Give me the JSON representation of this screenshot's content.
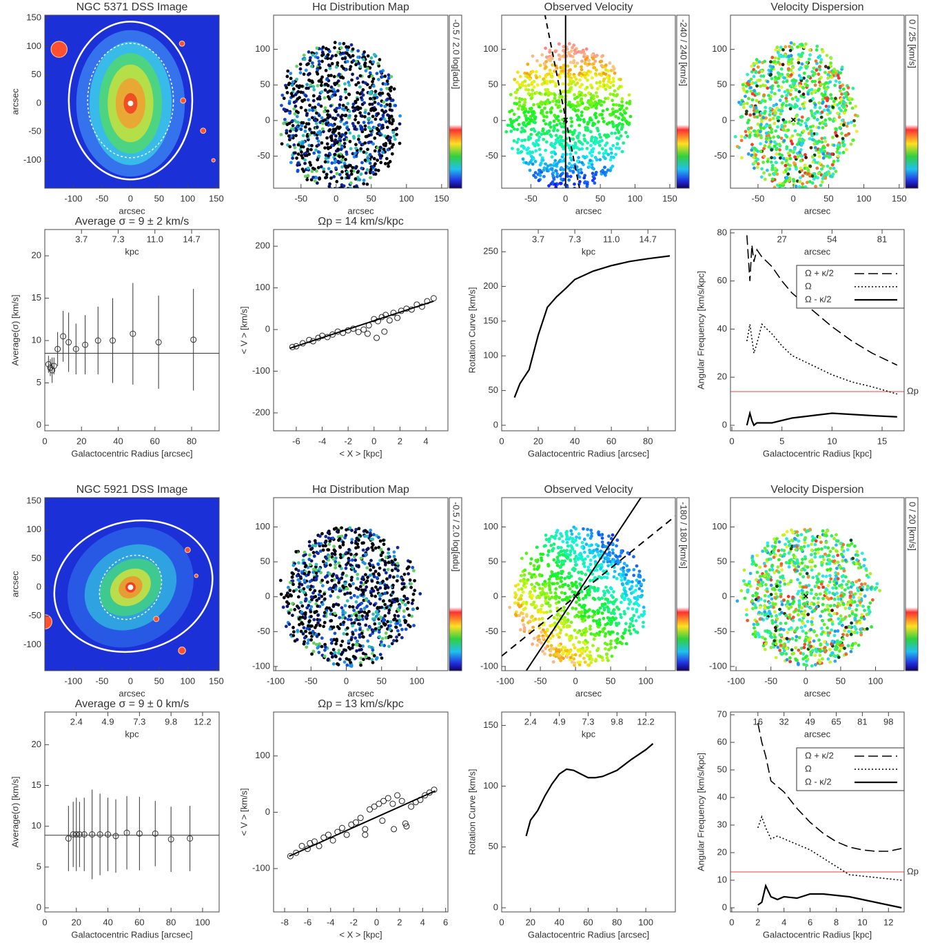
{
  "chart_data": [
    {
      "type": "image",
      "title": "NGC 5371 DSS Image",
      "xlabel": "arcsec",
      "ylabel": "arcsec",
      "xlim": [
        -150,
        155
      ],
      "ylim": [
        -149,
        155
      ],
      "xticks": [
        -100,
        -50,
        0,
        50,
        100,
        150
      ],
      "yticks": [
        -100,
        -50,
        0,
        50,
        100,
        150
      ]
    },
    {
      "type": "map",
      "title": "Hα Distribution Map",
      "xlabel": "arcsec",
      "xlim": [
        -89,
        159
      ],
      "ylim": [
        -95,
        148
      ],
      "xticks": [
        -50,
        0,
        50,
        100,
        150
      ],
      "yticks": [
        -50,
        0,
        50,
        100
      ],
      "colorbar_label": "-0.5 / 2.0 log[adu]"
    },
    {
      "type": "map",
      "title": "Observed Velocity",
      "xlabel": "arcsec",
      "xlim": [
        -92,
        158
      ],
      "ylim": [
        -95,
        148
      ],
      "xticks": [
        -50,
        0,
        50,
        100,
        150
      ],
      "yticks": [
        -50,
        0,
        50,
        100
      ],
      "colorbar_label": "-240 / 240 [km/s]"
    },
    {
      "type": "map",
      "title": "Velocity Dispersion",
      "xlabel": "arcsec",
      "xlim": [
        -89,
        157
      ],
      "ylim": [
        -95,
        148
      ],
      "xticks": [
        -50,
        0,
        50,
        100,
        150
      ],
      "yticks": [
        -50,
        0,
        50,
        100
      ],
      "colorbar_label": "0 / 25 [km/s]"
    },
    {
      "type": "errorbar",
      "title": "Average σ = 9 ± 2 km/s",
      "xlabel": "Galactocentric Radius [arcsec]",
      "ylabel": "Average(σ) [km/s]",
      "xlim": [
        0,
        95
      ],
      "ylim": [
        -0.65,
        23.1
      ],
      "xticks": [
        0,
        20,
        40,
        60,
        80
      ],
      "yticks": [
        0,
        5,
        10,
        15,
        20
      ],
      "top_xlabel": "kpc",
      "top_xticks": [
        {
          "value": 20,
          "label": "3.7"
        },
        {
          "value": 40,
          "label": "7.3"
        },
        {
          "value": 60,
          "label": "11.0"
        },
        {
          "value": 80,
          "label": "14.7"
        }
      ],
      "x": [
        2,
        3,
        4,
        5,
        7,
        10,
        13,
        17,
        22,
        29,
        37,
        48,
        62,
        81
      ],
      "values": [
        7.2,
        6.8,
        6.5,
        7,
        9,
        10.5,
        9.8,
        9,
        9.5,
        10,
        10,
        10.8,
        9.8,
        10.1
      ],
      "errors": [
        1,
        1,
        1.5,
        1,
        2,
        3,
        3.5,
        3,
        3.5,
        4,
        5,
        6,
        5.5,
        6
      ],
      "mean": 8.5
    },
    {
      "type": "scatter",
      "title": "Ωp = 14 km/s/kpc",
      "xlabel": "< X > [kpc]",
      "ylabel": "< V > [km/s]",
      "xlim": [
        -7.75,
        5.7
      ],
      "ylim": [
        -243,
        240
      ],
      "xticks": [
        -6,
        -4,
        -2,
        0,
        2,
        4
      ],
      "yticks": [
        -200,
        -100,
        0,
        100,
        200
      ],
      "x": [
        -6.3,
        -6,
        -5.5,
        -5,
        -4.7,
        -4.3,
        -4,
        -3.6,
        -3.2,
        -2.8,
        -2.4,
        -2,
        -1.6,
        -1.2,
        -0.8,
        -0.4,
        0,
        0.3,
        0.6,
        0.9,
        1.2,
        1.5,
        1.8,
        2.1,
        2.5,
        2.9,
        3.3,
        3.7,
        4.1,
        4.6,
        -0.5,
        0.2,
        0.8
      ],
      "y": [
        -42,
        -40,
        -33,
        -25,
        -28,
        -20,
        -15,
        -18,
        -12,
        -5,
        -8,
        -2,
        2,
        -6,
        0,
        10,
        25,
        20,
        30,
        35,
        22,
        40,
        28,
        45,
        50,
        48,
        60,
        55,
        68,
        75,
        -10,
        -20,
        -5
      ],
      "fit": {
        "x": [
          -6.5,
          4.6
        ],
        "y": [
          -45,
          68
        ]
      }
    },
    {
      "type": "line",
      "xlabel": "Galactocentric Radius [arcsec]",
      "ylabel": "Rotation Curve [km/s]",
      "xlim": [
        0,
        95
      ],
      "ylim": [
        -8,
        282
      ],
      "xticks": [
        0,
        20,
        40,
        60,
        80
      ],
      "yticks": [
        0,
        50,
        100,
        150,
        200,
        250
      ],
      "top_xlabel": "kpc",
      "top_xticks": [
        {
          "value": 20,
          "label": "3.7"
        },
        {
          "value": 40,
          "label": "7.3"
        },
        {
          "value": 60,
          "label": "11.0"
        },
        {
          "value": 80,
          "label": "14.7"
        }
      ],
      "x": [
        7,
        10,
        15,
        20,
        25,
        30,
        35,
        40,
        50,
        60,
        70,
        80,
        92
      ],
      "values": [
        40,
        60,
        80,
        130,
        170,
        185,
        197,
        210,
        222,
        230,
        236,
        240,
        244
      ]
    },
    {
      "type": "multiline",
      "xlabel": "Galactocentric Radius [kpc]",
      "ylabel": "Angular Frequency [km/s/kpc]",
      "xlim": [
        -0.14,
        17.2
      ],
      "ylim": [
        -2.3,
        81.4
      ],
      "xticks": [
        0,
        5,
        10,
        15
      ],
      "yticks": [
        0,
        20,
        40,
        60,
        80
      ],
      "top_xlabel": "arcsec",
      "top_xticks": [
        {
          "value": 5,
          "label": "27"
        },
        {
          "value": 10,
          "label": "54"
        },
        {
          "value": 15,
          "label": "81"
        }
      ],
      "legend": "upper right",
      "x": [
        1.5,
        1.8,
        2,
        2.2,
        2.5,
        3,
        4,
        5,
        6,
        8,
        10,
        12,
        14,
        16.5
      ],
      "series": [
        {
          "name": "Ω + κ/2",
          "dash": "long-dash",
          "values": [
            79,
            60,
            75,
            68,
            73,
            70,
            66,
            60,
            55,
            48,
            41,
            35,
            30,
            25
          ]
        },
        {
          "name": "Ω",
          "dash": "dotted",
          "values": [
            35,
            42,
            36,
            30,
            34,
            42,
            38,
            33,
            29,
            25,
            21,
            18,
            16,
            13
          ]
        },
        {
          "name": "Ω - κ/2",
          "dash": "solid",
          "values": [
            0,
            5,
            2,
            0,
            1,
            1,
            1,
            2,
            3,
            4,
            5,
            4.5,
            4,
            3.5
          ]
        }
      ],
      "pattern_speed": {
        "name": "Ωp",
        "value": 14,
        "color": "#f08080"
      }
    },
    {
      "type": "image",
      "title": "NGC 5921 DSS Image",
      "xlabel": "arcsec",
      "ylabel": "arcsec",
      "xlim": [
        -150,
        155
      ],
      "ylim": [
        -145,
        156
      ],
      "xticks": [
        -100,
        -50,
        0,
        50,
        100,
        150
      ],
      "yticks": [
        -100,
        -50,
        0,
        50,
        100,
        150
      ]
    },
    {
      "type": "map",
      "title": "Hα Distribution Map",
      "xlabel": "arcsec",
      "xlim": [
        -103,
        144
      ],
      "ylim": [
        -106,
        142
      ],
      "xticks": [
        -100,
        -50,
        0,
        50,
        100
      ],
      "yticks": [
        -100,
        -50,
        0,
        50,
        100
      ],
      "colorbar_label": "-0.5 / 2.0 log[adu]"
    },
    {
      "type": "map",
      "title": "Observed Velocity",
      "xlabel": "arcsec",
      "xlim": [
        -105,
        142
      ],
      "ylim": [
        -106,
        142
      ],
      "xticks": [
        -100,
        -50,
        0,
        50,
        100
      ],
      "yticks": [
        -100,
        -50,
        0,
        50,
        100
      ],
      "colorbar_label": "-180 / 180 [km/s]"
    },
    {
      "type": "map",
      "title": "Velocity Dispersion",
      "xlabel": "arcsec",
      "xlim": [
        -108,
        141
      ],
      "ylim": [
        -106,
        142
      ],
      "xticks": [
        -100,
        -50,
        0,
        50,
        100
      ],
      "yticks": [
        -100,
        -50,
        0,
        50,
        100
      ],
      "colorbar_label": "0 / 20 [km/s]"
    },
    {
      "type": "errorbar",
      "title": "Average σ = 9 ± 0 km/s",
      "xlabel": "Galactocentric Radius [arcsec]",
      "ylabel": "Average(σ) [km/s]",
      "xlim": [
        0,
        110.5
      ],
      "ylim": [
        -0.5,
        24
      ],
      "xticks": [
        0,
        20,
        40,
        60,
        80,
        100
      ],
      "yticks": [
        0,
        5,
        10,
        15,
        20
      ],
      "top_xlabel": "kpc",
      "top_xticks": [
        {
          "value": 20,
          "label": "2.4"
        },
        {
          "value": 40,
          "label": "4.9"
        },
        {
          "value": 60,
          "label": "7.3"
        },
        {
          "value": 80,
          "label": "9.8"
        },
        {
          "value": 100,
          "label": "12.2"
        }
      ],
      "x": [
        15,
        18,
        20,
        22,
        25,
        30,
        35,
        40,
        45,
        52,
        60,
        70,
        80,
        92
      ],
      "values": [
        8.5,
        9,
        9,
        9,
        9,
        9,
        9,
        9,
        8.8,
        9.2,
        9.1,
        9.1,
        8.4,
        8.5
      ],
      "errors": [
        4,
        4,
        4.5,
        4,
        4.5,
        5.5,
        5,
        4.5,
        4.5,
        4.5,
        4.5,
        4,
        4,
        4
      ],
      "mean": 8.9
    },
    {
      "type": "scatter",
      "title": "Ωp = 13 km/s/kpc",
      "xlabel": "< X > [kpc]",
      "ylabel": "< V > [km/s]",
      "xlim": [
        -8.96,
        6.2
      ],
      "ylim": [
        -177,
        178
      ],
      "xticks": [
        -8,
        -6,
        -4,
        -2,
        0,
        2,
        4,
        6
      ],
      "yticks": [
        -100,
        0,
        100
      ],
      "x": [
        -7.5,
        -7,
        -6.5,
        -6,
        -5.8,
        -5.4,
        -5,
        -4.6,
        -4.2,
        -3.8,
        -3.4,
        -3,
        -2.6,
        -2.2,
        -1.8,
        -1.4,
        -1,
        -0.6,
        -0.2,
        0.2,
        0.6,
        1,
        1.4,
        1.8,
        2.2,
        2.6,
        3,
        3.4,
        3.8,
        4.2,
        4.6,
        5,
        -1,
        0.5,
        1.5,
        2.5
      ],
      "y": [
        -78,
        -72,
        -60,
        -65,
        -55,
        -52,
        -60,
        -45,
        -40,
        -50,
        -35,
        -28,
        -40,
        -22,
        -18,
        -10,
        -30,
        5,
        10,
        15,
        20,
        25,
        15,
        30,
        20,
        -25,
        10,
        18,
        22,
        30,
        35,
        40,
        -40,
        -15,
        -30,
        -20
      ],
      "fit": {
        "x": [
          -7.6,
          5.1
        ],
        "y": [
          -78,
          38
        ]
      }
    },
    {
      "type": "line",
      "xlabel": "Galactocentric Radius [arcsec]",
      "ylabel": "Rotation Curve [km/s]",
      "xlim": [
        0,
        120.5
      ],
      "ylim": [
        -3.4,
        161
      ],
      "xticks": [
        0,
        20,
        40,
        60,
        80,
        100
      ],
      "yticks": [
        0,
        50,
        100,
        150
      ],
      "top_xlabel": "kpc",
      "top_xticks": [
        {
          "value": 20,
          "label": "2.4"
        },
        {
          "value": 40,
          "label": "4.9"
        },
        {
          "value": 60,
          "label": "7.3"
        },
        {
          "value": 80,
          "label": "9.8"
        },
        {
          "value": 100,
          "label": "12.2"
        }
      ],
      "x": [
        17,
        20,
        25,
        30,
        35,
        40,
        45,
        50,
        55,
        60,
        65,
        70,
        80,
        90,
        100,
        105
      ],
      "values": [
        59,
        72,
        80,
        92,
        102,
        110,
        114,
        113,
        110,
        107,
        107,
        108,
        113,
        122,
        130,
        135
      ]
    },
    {
      "type": "multiline",
      "xlabel": "Galactocentric Radius [kpc]",
      "ylabel": "Angular Frequency [km/s/kpc]",
      "xlim": [
        -0.1,
        13.2
      ],
      "ylim": [
        -1.5,
        71
      ],
      "xticks": [
        0,
        2,
        4,
        6,
        8,
        10,
        12
      ],
      "yticks": [
        0,
        10,
        20,
        30,
        40,
        50,
        60,
        70
      ],
      "top_xlabel": "arcsec",
      "top_xticks": [
        {
          "value": 2,
          "label": "16"
        },
        {
          "value": 4,
          "label": "32"
        },
        {
          "value": 6,
          "label": "49"
        },
        {
          "value": 8,
          "label": "65"
        },
        {
          "value": 10,
          "label": "81"
        },
        {
          "value": 12,
          "label": "98"
        }
      ],
      "legend": "upper right",
      "x": [
        2,
        2.3,
        2.6,
        3,
        3.5,
        4,
        5,
        6,
        7,
        8,
        9,
        10,
        11,
        12,
        13
      ],
      "series": [
        {
          "name": "Ω + κ/2",
          "dash": "long-dash",
          "values": [
            67,
            60,
            55,
            46,
            44,
            42,
            36,
            31,
            27,
            24,
            22,
            21,
            20.5,
            20.5,
            21.5
          ]
        },
        {
          "name": "Ω",
          "dash": "dotted",
          "values": [
            29,
            33,
            29,
            25,
            26,
            25,
            23,
            21,
            18,
            15,
            12,
            11.5,
            11,
            10.5,
            10
          ]
        },
        {
          "name": "Ω - κ/2",
          "dash": "solid",
          "values": [
            1,
            2,
            8,
            4,
            3,
            4,
            3.5,
            5,
            5,
            4.5,
            4,
            3,
            2,
            1,
            0
          ]
        }
      ],
      "pattern_speed": {
        "name": "Ωp",
        "value": 13,
        "color": "#f08080"
      }
    }
  ]
}
